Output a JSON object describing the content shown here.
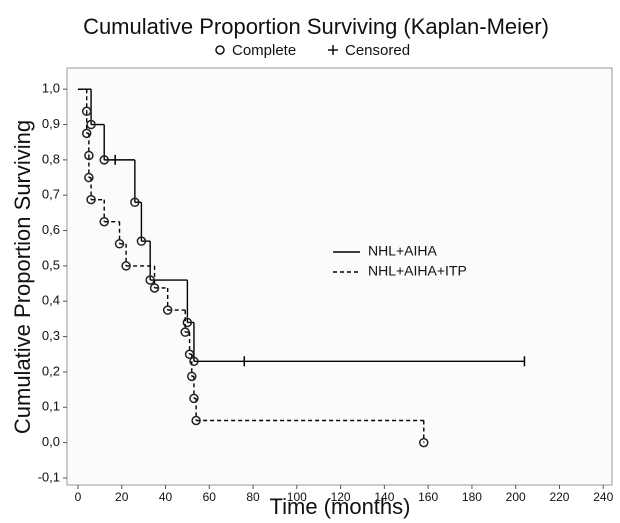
{
  "chart_data": {
    "type": "kaplan-meier",
    "title": "Cumulative Proportion Surviving (Kaplan-Meier)",
    "markers": [
      {
        "label": "Complete",
        "symbol": "circle"
      },
      {
        "label": "Censored",
        "symbol": "plus"
      }
    ],
    "xlabel": "Time (months)",
    "ylabel": "Cumulative Proportion Surviving",
    "xlim": [
      -5,
      244
    ],
    "ylim": [
      -0.12,
      1.06
    ],
    "xticks": [
      0,
      20,
      40,
      60,
      80,
      100,
      120,
      140,
      160,
      180,
      200,
      220,
      240
    ],
    "yticks": [
      {
        "value": 1.0,
        "label": "1,0"
      },
      {
        "value": 0.9,
        "label": "0,9"
      },
      {
        "value": 0.8,
        "label": "0,8"
      },
      {
        "value": 0.7,
        "label": "0,7"
      },
      {
        "value": 0.6,
        "label": "0,6"
      },
      {
        "value": 0.5,
        "label": "0,5"
      },
      {
        "value": 0.4,
        "label": "0,4"
      },
      {
        "value": 0.3,
        "label": "0,3"
      },
      {
        "value": 0.2,
        "label": "0,2"
      },
      {
        "value": 0.1,
        "label": "0,1"
      },
      {
        "value": 0.0,
        "label": "0,0"
      },
      {
        "value": -0.1,
        "label": "-0,1"
      }
    ],
    "series": [
      {
        "name": "NHL+AIHA",
        "color": "#000000",
        "dashed": false,
        "x": [
          0,
          6,
          12,
          26,
          29,
          33,
          50,
          53
        ],
        "values": [
          1.0,
          0.9,
          0.8,
          0.68,
          0.57,
          0.46,
          0.34,
          0.23
        ],
        "censored_x": [
          17,
          76,
          204
        ],
        "censored_values": [
          0.8,
          0.23,
          0.23
        ]
      },
      {
        "name": "NHL+AIHA+ITP",
        "color": "#000000",
        "dashed": true,
        "x": [
          0,
          4,
          4,
          5,
          5,
          6,
          12,
          19,
          22,
          35,
          41,
          49,
          51,
          52,
          53,
          54,
          158
        ],
        "values": [
          1.0,
          0.9375,
          0.875,
          0.8125,
          0.75,
          0.6875,
          0.625,
          0.5625,
          0.5,
          0.4375,
          0.375,
          0.3125,
          0.25,
          0.1875,
          0.125,
          0.0625,
          0.0
        ],
        "censored_x": [],
        "censored_values": []
      }
    ]
  }
}
